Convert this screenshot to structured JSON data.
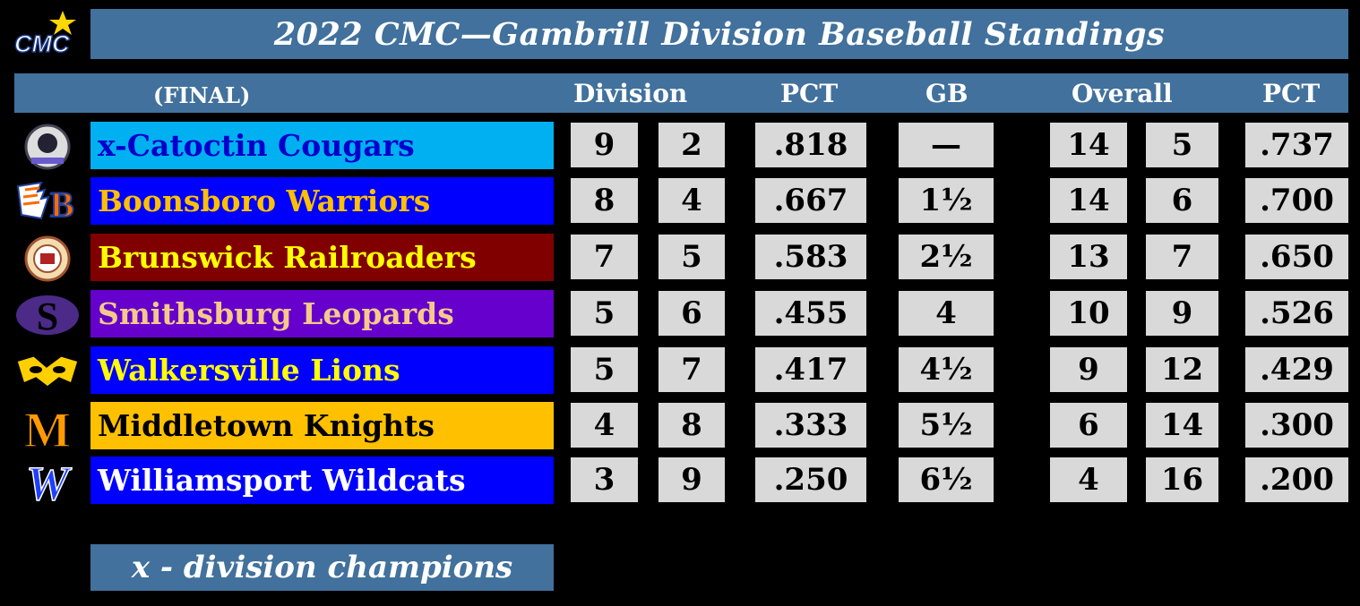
{
  "title": "2022 CMC—Gambrill Division Baseball Standings",
  "header": {
    "final": "(FINAL)",
    "division": "Division",
    "pct": "PCT",
    "gb": "GB",
    "overall": "Overall",
    "overall_pct": "PCT"
  },
  "logo_cmc": "CMC",
  "teams": [
    {
      "name": "x-Catoctin Cougars",
      "dw": "9",
      "dl": "2",
      "pct": ".818",
      "gb": "—",
      "ow": "14",
      "ol": "5",
      "opct": ".737",
      "bg": "#00b0f0",
      "fg": "#0000cc",
      "logo": "cougar-seal-icon"
    },
    {
      "name": "Boonsboro Warriors",
      "dw": "8",
      "dl": "4",
      "pct": ".667",
      "gb": "1½",
      "ow": "14",
      "ol": "6",
      "opct": ".700",
      "bg": "#0000ff",
      "fg": "#ffc000",
      "logo": "warrior-b-icon"
    },
    {
      "name": "Brunswick Railroaders",
      "dw": "7",
      "dl": "5",
      "pct": ".583",
      "gb": "2½",
      "ow": "13",
      "ol": "7",
      "opct": ".650",
      "bg": "#800000",
      "fg": "#ffff00",
      "logo": "railroader-seal-icon"
    },
    {
      "name": "Smithsburg Leopards",
      "dw": "5",
      "dl": "6",
      "pct": ".455",
      "gb": "4",
      "ow": "10",
      "ol": "9",
      "opct": ".526",
      "bg": "#6600cc",
      "fg": "#f4c98a",
      "logo": "s-letter-icon"
    },
    {
      "name": "Walkersville Lions",
      "dw": "5",
      "dl": "7",
      "pct": ".417",
      "gb": "4½",
      "ow": "9",
      "ol": "12",
      "opct": ".429",
      "bg": "#0000ff",
      "fg": "#ffff00",
      "logo": "lion-eyes-icon"
    },
    {
      "name": "Middletown Knights",
      "dw": "4",
      "dl": "8",
      "pct": ".333",
      "gb": "5½",
      "ow": "6",
      "ol": "14",
      "opct": ".300",
      "bg": "#ffc000",
      "fg": "#000000",
      "logo": "m-letter-icon"
    },
    {
      "name": "Williamsport Wildcats",
      "dw": "3",
      "dl": "9",
      "pct": ".250",
      "gb": "6½",
      "ow": "4",
      "ol": "16",
      "opct": ".200",
      "bg": "#0000ff",
      "fg": "#ffffff",
      "logo": "w-letter-icon"
    }
  ],
  "footnote": "x - division champions",
  "colors": {
    "bar": "#41719c",
    "cell": "#d9d9d9",
    "background": "#000000"
  }
}
